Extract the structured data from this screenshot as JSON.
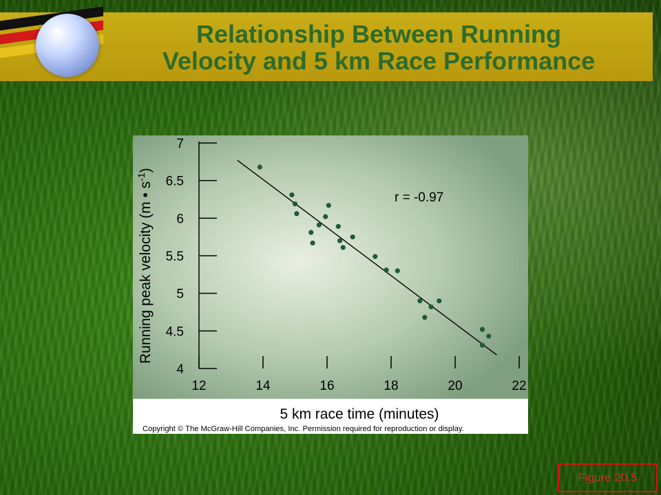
{
  "slide": {
    "title_line1": "Relationship Between Running",
    "title_line2": "Velocity and 5 km Race Performance",
    "figure_label": "Figure 20.5",
    "colors": {
      "title": "#2e6b2a",
      "bar": "#c8ac16",
      "figure_border": "#e01010"
    }
  },
  "chart_data": {
    "type": "scatter",
    "title": "",
    "xlabel": "5 km race time (minutes)",
    "ylabel": "Running peak velocity (m • s",
    "ylabel_superscript": "-1",
    "ylabel_suffix": ")",
    "xlim": [
      12,
      22
    ],
    "ylim": [
      4,
      7
    ],
    "x_ticks": [
      "12",
      "14",
      "16",
      "18",
      "20",
      "22"
    ],
    "y_ticks": [
      "4",
      "4.5",
      "5",
      "5.5",
      "6",
      "6.5",
      "7"
    ],
    "annotation": "r = -0.97",
    "copyright": "Copyright © The McGraw-Hill Companies, Inc. Permission required for reproduction or display.",
    "point_color": "#1f5a3c",
    "fit_line": {
      "x": [
        13.2,
        21.3
      ],
      "y": [
        6.77,
        4.18
      ]
    },
    "points": [
      {
        "x": 13.9,
        "y": 6.68
      },
      {
        "x": 14.9,
        "y": 6.31
      },
      {
        "x": 15.0,
        "y": 6.19
      },
      {
        "x": 15.05,
        "y": 6.06
      },
      {
        "x": 15.5,
        "y": 5.81
      },
      {
        "x": 15.55,
        "y": 5.67
      },
      {
        "x": 15.75,
        "y": 5.91
      },
      {
        "x": 15.95,
        "y": 6.02
      },
      {
        "x": 16.05,
        "y": 6.17
      },
      {
        "x": 16.35,
        "y": 5.89
      },
      {
        "x": 16.4,
        "y": 5.7
      },
      {
        "x": 16.5,
        "y": 5.61
      },
      {
        "x": 16.8,
        "y": 5.75
      },
      {
        "x": 17.5,
        "y": 5.49
      },
      {
        "x": 17.85,
        "y": 5.31
      },
      {
        "x": 18.2,
        "y": 5.3
      },
      {
        "x": 18.9,
        "y": 4.9
      },
      {
        "x": 19.05,
        "y": 4.68
      },
      {
        "x": 19.25,
        "y": 4.82
      },
      {
        "x": 19.5,
        "y": 4.9
      },
      {
        "x": 20.85,
        "y": 4.52
      },
      {
        "x": 21.05,
        "y": 4.43
      },
      {
        "x": 20.85,
        "y": 4.31
      }
    ]
  }
}
